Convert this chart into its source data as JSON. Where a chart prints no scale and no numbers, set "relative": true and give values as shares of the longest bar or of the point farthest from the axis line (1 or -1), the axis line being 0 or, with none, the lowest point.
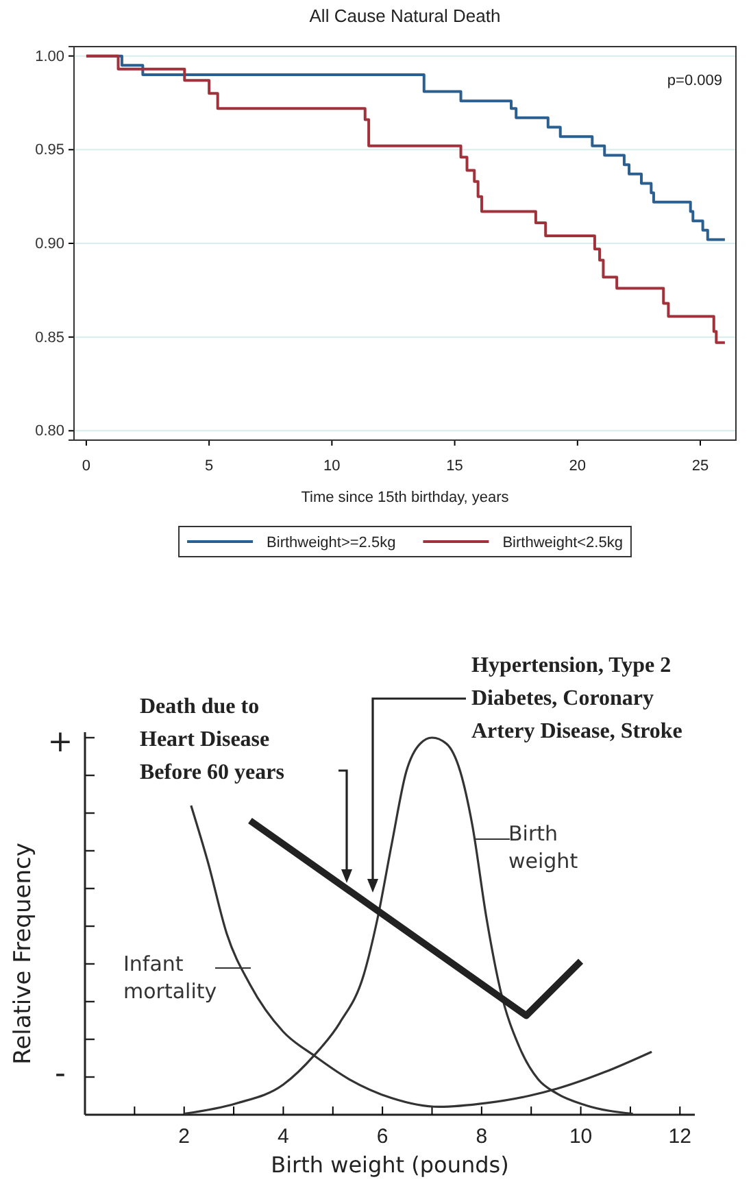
{
  "chart_data": [
    {
      "type": "step",
      "title": "All Cause Natural Death",
      "xlabel": "Time since 15th birthday, years",
      "xlim": [
        -0.5,
        26.45
      ],
      "ylim": [
        0.795,
        1.005
      ],
      "xticks": [
        0,
        5,
        10,
        15,
        20,
        25
      ],
      "yticks": [
        {
          "value": 0.8,
          "label": "0.80"
        },
        {
          "value": 0.85,
          "label": "0.85"
        },
        {
          "value": 0.9,
          "label": "0.90"
        },
        {
          "value": 0.95,
          "label": "0.95"
        },
        {
          "value": 1,
          "label": "1.00"
        }
      ],
      "grid": "y",
      "legend": "bottom",
      "annotations": [
        "p=0.009"
      ],
      "series": [
        {
          "name": "Birthweight>=2.5kg",
          "color": "#2a5f8f",
          "x": [
            0,
            1.45,
            2.3,
            13.75,
            15.25,
            17.3,
            17.5,
            18.8,
            19.3,
            20.6,
            21.1,
            21.9,
            22.1,
            22.6,
            23.0,
            23.1,
            24.6,
            24.7,
            25.1,
            25.3,
            26.0
          ],
          "values": [
            1.0,
            0.995,
            0.99,
            0.981,
            0.976,
            0.972,
            0.967,
            0.962,
            0.957,
            0.952,
            0.947,
            0.942,
            0.937,
            0.932,
            0.927,
            0.922,
            0.917,
            0.912,
            0.907,
            0.902,
            0.902
          ]
        },
        {
          "name": "Birthweight<2.5kg",
          "color": "#a0323c",
          "x": [
            0,
            1.3,
            4.0,
            5.0,
            5.35,
            11.35,
            11.5,
            15.25,
            15.5,
            15.8,
            15.95,
            16.1,
            18.3,
            18.7,
            20.7,
            20.9,
            21.05,
            21.6,
            23.5,
            23.7,
            25.55,
            25.65,
            26.0
          ],
          "values": [
            1.0,
            0.993,
            0.987,
            0.98,
            0.972,
            0.966,
            0.952,
            0.946,
            0.939,
            0.933,
            0.925,
            0.917,
            0.911,
            0.904,
            0.897,
            0.891,
            0.882,
            0.876,
            0.868,
            0.861,
            0.853,
            0.847,
            0.847
          ]
        }
      ]
    },
    {
      "type": "line",
      "relative": true,
      "xlabel": "Birth weight (pounds)",
      "ylabel": "Relative Frequency",
      "xlim": [
        0,
        12.3
      ],
      "xticks": [
        {
          "value": 1,
          "label": null
        },
        2,
        {
          "value": 3,
          "label": null
        },
        4,
        {
          "value": 5,
          "label": null
        },
        6,
        {
          "value": 7,
          "label": null
        },
        8,
        {
          "value": 9,
          "label": null
        },
        10,
        {
          "value": 11,
          "label": null
        },
        12
      ],
      "annotations": [
        "+",
        "-",
        "Death due to Heart Disease Before 60 years",
        "Hypertension, Type 2 Diabetes, Coronary Artery Disease, Stroke"
      ],
      "series": [
        {
          "name": "Infant mortality",
          "color": "#333333",
          "x": [
            2.14,
            2.48,
            2.86,
            3.33,
            4.0,
            4.62,
            5.33,
            6.19,
            7.14,
            8.1,
            8.95,
            9.52,
            10.48,
            11.43
          ],
          "values": [
            0.82,
            0.67,
            0.48,
            0.345,
            0.22,
            0.157,
            0.094,
            0.044,
            0.021,
            0.031,
            0.05,
            0.069,
            0.113,
            0.167
          ]
        },
        {
          "name": "Birth weight",
          "color": "#333333",
          "x": [
            2.0,
            3.05,
            4.0,
            4.62,
            5.14,
            5.62,
            5.9,
            6.19,
            6.48,
            6.76,
            7.0,
            7.29,
            7.57,
            7.81,
            8.1,
            8.38,
            8.76,
            9.14,
            9.52,
            10.1,
            11.05
          ],
          "values": [
            0.0025,
            0.03,
            0.08,
            0.157,
            0.244,
            0.37,
            0.52,
            0.72,
            0.91,
            0.984,
            1.0,
            0.984,
            0.91,
            0.77,
            0.52,
            0.33,
            0.18,
            0.094,
            0.056,
            0.025,
            0.0025
          ]
        },
        {
          "color": "#222222",
          "x": [
            3.33,
            8.9,
            10.0
          ],
          "values": [
            0.78,
            0.263,
            0.407
          ]
        }
      ]
    }
  ]
}
